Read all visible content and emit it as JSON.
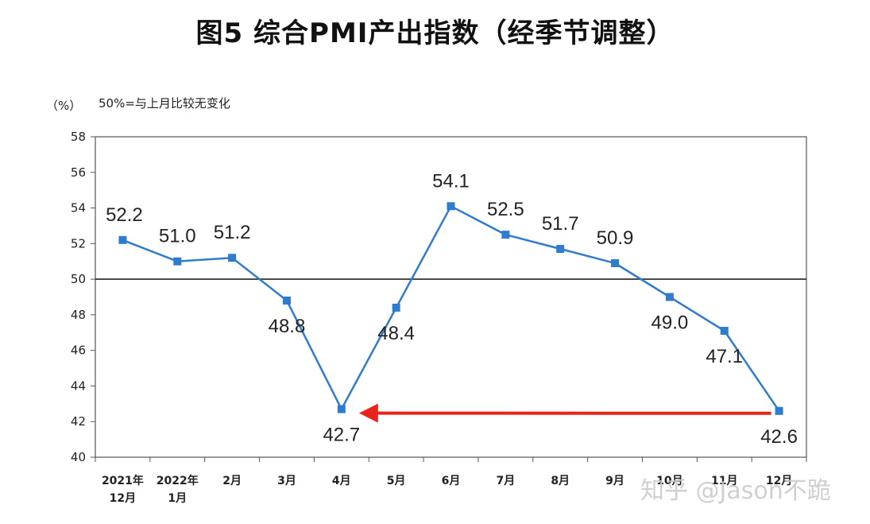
{
  "chart_data": {
    "type": "line",
    "title": "图5 综合PMI产出指数（经季节调整）",
    "unit_label": "（%）",
    "reference_note": "50%=与上月比较无变化",
    "reference_value": 50,
    "categories": [
      [
        "2021年",
        "12月"
      ],
      [
        "2022年",
        "1月"
      ],
      [
        "2月"
      ],
      [
        "3月"
      ],
      [
        "4月"
      ],
      [
        "5月"
      ],
      [
        "6月"
      ],
      [
        "7月"
      ],
      [
        "8月"
      ],
      [
        "9月"
      ],
      [
        "10月"
      ],
      [
        "11月"
      ],
      [
        "12月"
      ]
    ],
    "series": [
      {
        "values": [
          52.2,
          51.0,
          51.2,
          48.8,
          42.7,
          48.4,
          54.1,
          52.5,
          51.7,
          50.9,
          49.0,
          47.1,
          42.6
        ],
        "color": "#2f7ccf"
      }
    ],
    "data_labels": [
      "52.2",
      "51.0",
      "51.2",
      "48.8",
      "42.7",
      "48.4",
      "54.1",
      "52.5",
      "51.7",
      "50.9",
      "49.0",
      "47.1",
      "42.6"
    ],
    "label_position": [
      "above",
      "above",
      "above",
      "below",
      "below",
      "below",
      "above",
      "above",
      "above",
      "above",
      "below",
      "below",
      "below"
    ],
    "ylim": [
      40,
      58
    ],
    "yticks": [
      40,
      42,
      44,
      46,
      48,
      50,
      52,
      54,
      56,
      58
    ],
    "grid": false,
    "annotation": {
      "type": "arrow",
      "from_index": 12,
      "to_index": 4,
      "color": "#e8231a"
    }
  },
  "watermark": "知乎 @Jason不跪"
}
